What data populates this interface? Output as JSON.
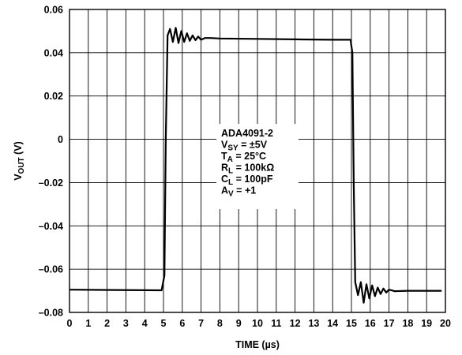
{
  "chart_data": {
    "type": "line",
    "xlabel": "TIME (µs)",
    "ylabel_main": "V",
    "ylabel_sub": "OUT",
    "ylabel_unit": " (V)",
    "xlim": [
      0,
      20
    ],
    "ylim": [
      -0.08,
      0.06
    ],
    "x_ticks": [
      0,
      1,
      2,
      3,
      4,
      5,
      6,
      7,
      8,
      9,
      10,
      11,
      12,
      13,
      14,
      15,
      16,
      17,
      18,
      19,
      20
    ],
    "y_ticks": [
      -0.08,
      -0.06,
      -0.04,
      -0.02,
      0,
      0.02,
      0.04,
      0.06
    ],
    "y_tick_labels": [
      "–0.08",
      "–0.06",
      "–0.04",
      "–0.02",
      "0",
      "0.02",
      "0.04",
      "0.06"
    ],
    "grid": true,
    "annotation": [
      {
        "main": "ADA4091-2",
        "sub": "",
        "rest": ""
      },
      {
        "main": "V",
        "sub": "SY",
        "rest": " = ±5V"
      },
      {
        "main": "T",
        "sub": "A",
        "rest": " = 25°C"
      },
      {
        "main": "R",
        "sub": "L",
        "rest": " = 100kΩ"
      },
      {
        "main": "C",
        "sub": "L",
        "rest": " = 100pF"
      },
      {
        "main": "A",
        "sub": "V",
        "rest": " = +1"
      }
    ],
    "series": [
      {
        "x": [
          0,
          4.9,
          5.05,
          5.12,
          5.22,
          5.35,
          5.5,
          5.65,
          5.8,
          5.95,
          6.1,
          6.25,
          6.4,
          6.55,
          6.7,
          6.85,
          7.0,
          7.2,
          7.5,
          8.0,
          10.0,
          12.0,
          14.0,
          14.95,
          15.05,
          15.12,
          15.2,
          15.35,
          15.5,
          15.65,
          15.8,
          15.95,
          16.1,
          16.25,
          16.4,
          16.55,
          16.7,
          16.85,
          17.0,
          17.3,
          18.0,
          19.0,
          19.8
        ],
        "y": [
          -0.0695,
          -0.0698,
          -0.063,
          0.0,
          0.048,
          0.051,
          0.045,
          0.0515,
          0.0445,
          0.05,
          0.045,
          0.049,
          0.0455,
          0.048,
          0.0458,
          0.0475,
          0.046,
          0.0468,
          0.0468,
          0.0466,
          0.0464,
          0.0462,
          0.046,
          0.046,
          0.04,
          -0.02,
          -0.066,
          -0.072,
          -0.066,
          -0.0755,
          -0.067,
          -0.0735,
          -0.0675,
          -0.0725,
          -0.0685,
          -0.0715,
          -0.069,
          -0.0708,
          -0.0695,
          -0.0702,
          -0.07,
          -0.07,
          -0.07
        ]
      }
    ]
  }
}
